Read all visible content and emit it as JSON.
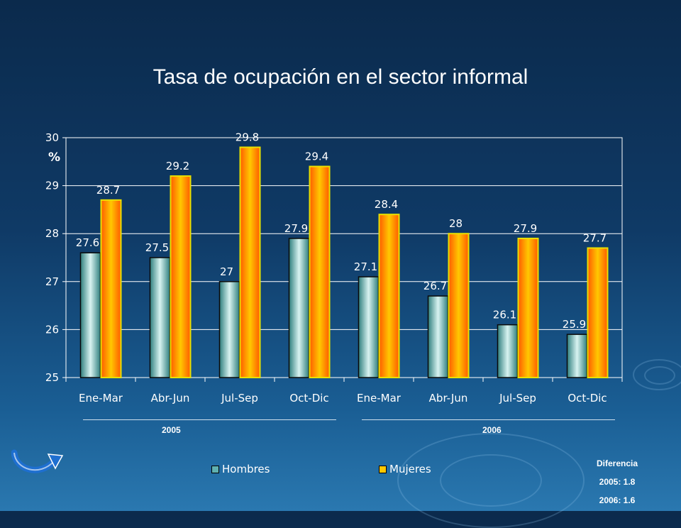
{
  "title": "Tasa de ocupación en el sector informal",
  "colors": {
    "hombres": "#5fb0b0",
    "mujeres": "#ff7a00",
    "mujeres_border": "#e8e000",
    "grid": "#ffffff",
    "background": "#0f3a66"
  },
  "chart_data": {
    "type": "bar",
    "title": "Tasa de ocupación en el sector informal",
    "ylabel": "%",
    "ylim": [
      25,
      30
    ],
    "yticks": [
      "25",
      "26",
      "27",
      "28",
      "29",
      "30"
    ],
    "grid": true,
    "legend_position": "bottom",
    "categories": [
      "Ene-Mar",
      "Abr-Jun",
      "Jul-Sep",
      "Oct-Dic",
      "Ene-Mar",
      "Abr-Jun",
      "Jul-Sep",
      "Oct-Dic"
    ],
    "series": [
      {
        "name": "Hombres",
        "values": [
          27.6,
          27.5,
          27,
          27.9,
          27.1,
          26.7,
          26.1,
          25.9
        ],
        "labels": [
          "27.6",
          "27.5",
          "27",
          "27.9",
          "27.1",
          "26.7",
          "26.1",
          "25.9"
        ]
      },
      {
        "name": "Mujeres",
        "values": [
          28.7,
          29.2,
          29.8,
          29.4,
          28.4,
          28,
          27.9,
          27.7
        ],
        "labels": [
          "28.7",
          "29.2",
          "29.8",
          "29.4",
          "28.4",
          "28",
          "27.9",
          "27.7"
        ]
      }
    ],
    "groups": [
      "2005",
      "2006"
    ]
  },
  "legend": {
    "hombres": "Hombres",
    "mujeres": "Mujeres"
  },
  "diferencia": {
    "heading": "Diferencia",
    "line2005": "2005:  1.8",
    "line2006": "2006:  1.6"
  },
  "icons": {
    "back": "curved-arrow-icon"
  }
}
